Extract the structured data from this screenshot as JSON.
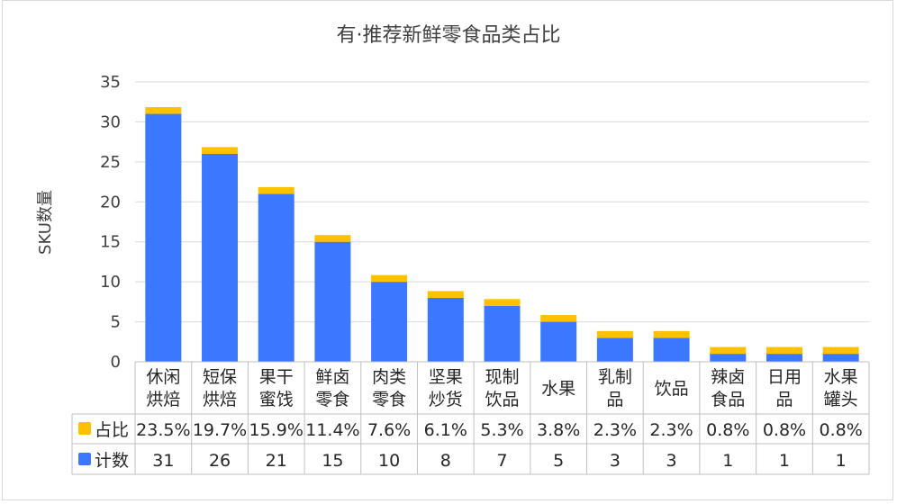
{
  "chart_data": {
    "type": "bar",
    "stacked": true,
    "title": "有·推荐新鲜零食品类占比",
    "ylabel": "SKU数量",
    "xlabel": "",
    "ylim": [
      0,
      35
    ],
    "yticks": [
      0,
      5,
      10,
      15,
      20,
      25,
      30,
      35
    ],
    "grid": true,
    "categories": [
      [
        "休闲",
        "烘焙"
      ],
      [
        "短保",
        "烘焙"
      ],
      [
        "果干",
        "蜜饯"
      ],
      [
        "鲜卤",
        "零食"
      ],
      [
        "肉类",
        "零食"
      ],
      [
        "坚果",
        "炒货"
      ],
      [
        "现制",
        "饮品"
      ],
      [
        "水果"
      ],
      [
        "乳制",
        "品"
      ],
      [
        "饮品"
      ],
      [
        "辣卤",
        "食品"
      ],
      [
        "日用",
        "品"
      ],
      [
        "水果",
        "罐头"
      ]
    ],
    "series": [
      {
        "name": "计数",
        "color": "#3b78ff",
        "values": [
          31,
          26,
          21,
          15,
          10,
          8,
          7,
          5,
          3,
          3,
          1,
          1,
          1
        ]
      },
      {
        "name": "占比",
        "color": "#ffc000",
        "values": [
          0.235,
          0.197,
          0.159,
          0.114,
          0.076,
          0.061,
          0.053,
          0.038,
          0.023,
          0.023,
          0.008,
          0.008,
          0.008
        ],
        "labels": [
          "23.5%",
          "19.7%",
          "15.9%",
          "11.4%",
          "7.6%",
          "6.1%",
          "5.3%",
          "3.8%",
          "2.3%",
          "2.3%",
          "0.8%",
          "0.8%",
          "0.8%"
        ]
      }
    ],
    "data_table": true
  }
}
